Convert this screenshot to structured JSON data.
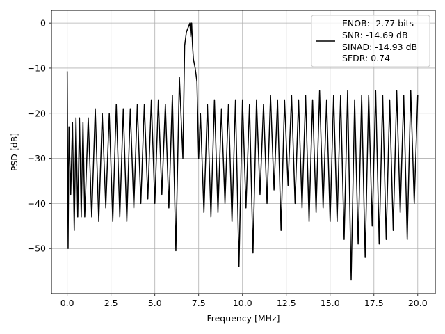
{
  "chart_data": {
    "type": "line",
    "xlabel": "Frequency [MHz]",
    "ylabel": "PSD [dB]",
    "xlim": [
      -0.9,
      21.0
    ],
    "ylim": [
      -60.0,
      2.8
    ],
    "xticks": [
      0.0,
      2.5,
      5.0,
      7.5,
      10.0,
      12.5,
      15.0,
      17.5,
      20.0
    ],
    "xtick_labels": [
      "0.0",
      "2.5",
      "5.0",
      "7.5",
      "10.0",
      "12.5",
      "15.0",
      "17.5",
      "20.0"
    ],
    "yticks": [
      0,
      -10,
      -20,
      -30,
      -40,
      -50
    ],
    "ytick_labels": [
      "0",
      "−10",
      "−20",
      "−30",
      "−40",
      "−50"
    ],
    "grid": true,
    "line_color": "#000000",
    "legend": {
      "placement": "top-right",
      "lines": [
        "ENOB: -2.77 bits",
        "SNR: -14.69 dB",
        "SINAD: -14.93 dB",
        "SFDR: 0.74"
      ]
    },
    "series": [
      {
        "x": [
          0.0,
          0.05,
          0.1,
          0.2,
          0.3,
          0.4,
          0.5,
          0.6,
          0.7,
          0.8,
          0.9,
          1.0,
          1.2,
          1.4,
          1.6,
          1.8,
          2.0,
          2.2,
          2.4,
          2.6,
          2.8,
          3.0,
          3.2,
          3.4,
          3.6,
          3.8,
          4.0,
          4.2,
          4.4,
          4.6,
          4.8,
          5.0,
          5.2,
          5.4,
          5.6,
          5.8,
          6.0,
          6.2,
          6.4,
          6.6,
          6.7,
          6.8,
          6.9,
          7.0,
          7.05,
          7.1,
          7.15,
          7.2,
          7.3,
          7.4,
          7.5,
          7.6,
          7.8,
          8.0,
          8.2,
          8.4,
          8.6,
          8.8,
          9.0,
          9.2,
          9.4,
          9.6,
          9.8,
          10.0,
          10.2,
          10.4,
          10.6,
          10.8,
          11.0,
          11.2,
          11.4,
          11.6,
          11.8,
          12.0,
          12.2,
          12.4,
          12.6,
          12.8,
          13.0,
          13.2,
          13.4,
          13.6,
          13.8,
          14.0,
          14.2,
          14.4,
          14.6,
          14.8,
          15.0,
          15.2,
          15.4,
          15.6,
          15.8,
          16.0,
          16.2,
          16.4,
          16.6,
          16.8,
          17.0,
          17.2,
          17.4,
          17.6,
          17.8,
          18.0,
          18.2,
          18.4,
          18.6,
          18.8,
          19.0,
          19.2,
          19.4,
          19.6,
          19.8,
          20.0
        ],
        "y": [
          -10.7,
          -50.0,
          -23.0,
          -38.0,
          -22.0,
          -46.0,
          -21.0,
          -43.0,
          -21.0,
          -43.0,
          -22.0,
          -43.0,
          -21.0,
          -43.0,
          -19.0,
          -44.0,
          -20.0,
          -41.0,
          -20.0,
          -44.0,
          -18.0,
          -43.0,
          -19.0,
          -44.0,
          -19.0,
          -41.0,
          -18.0,
          -40.0,
          -18.0,
          -39.0,
          -17.0,
          -40.0,
          -17.0,
          -38.0,
          -18.0,
          -41.0,
          -16.0,
          -50.5,
          -12.0,
          -30.0,
          -5.0,
          -2.0,
          -1.0,
          0.0,
          -3.0,
          0.0,
          -5.0,
          -8.0,
          -10.0,
          -13.0,
          -30.0,
          -20.0,
          -42.0,
          -18.0,
          -43.0,
          -17.0,
          -42.0,
          -19.0,
          -40.0,
          -18.0,
          -44.0,
          -17.0,
          -54.0,
          -17.0,
          -41.0,
          -18.0,
          -51.0,
          -17.0,
          -38.0,
          -18.0,
          -40.0,
          -16.0,
          -37.0,
          -17.0,
          -46.0,
          -17.0,
          -36.0,
          -16.0,
          -40.0,
          -17.0,
          -41.0,
          -16.0,
          -44.0,
          -17.0,
          -42.0,
          -15.0,
          -41.0,
          -17.0,
          -44.0,
          -16.0,
          -44.0,
          -16.0,
          -48.0,
          -15.0,
          -57.0,
          -17.0,
          -49.0,
          -16.0,
          -52.0,
          -16.0,
          -45.0,
          -15.0,
          -49.0,
          -16.0,
          -48.0,
          -17.0,
          -46.0,
          -15.0,
          -42.0,
          -16.0,
          -48.0,
          -15.0,
          -40.0,
          -16.0
        ]
      }
    ]
  }
}
